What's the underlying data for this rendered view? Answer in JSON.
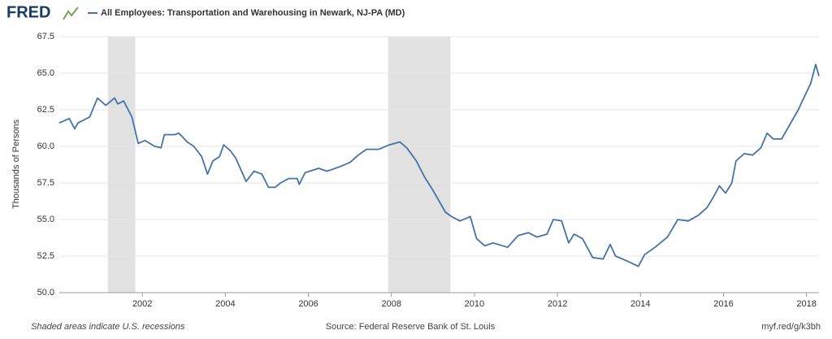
{
  "brand": "FRED",
  "chart_data": {
    "type": "line",
    "title": "All Employees: Transportation and Warehousing in Newark, NJ-PA (MD)",
    "y_label": "Thousands of Persons",
    "recession_note": "Shaded areas indicate U.S. recessions",
    "source": "Source: Federal Reserve Bank of St. Louis",
    "link": "myf.red/g/k3bh",
    "recessions": [
      [
        2001.17,
        2001.83
      ],
      [
        2007.92,
        2009.42
      ]
    ],
    "recession_color": "#e1e1e1",
    "xlim": [
      2000,
      2018.3
    ],
    "xticks": [
      2002,
      2004,
      2006,
      2008,
      2010,
      2012,
      2014,
      2016,
      2018
    ],
    "ylim": [
      50,
      67.5
    ],
    "yticks": [
      {
        "value": 50,
        "label": "50.0"
      },
      {
        "value": 52.5,
        "label": "52.5"
      },
      {
        "value": 55,
        "label": "55.0"
      },
      {
        "value": 57.5,
        "label": "57.5"
      },
      {
        "value": 60,
        "label": "60.0"
      },
      {
        "value": 62.5,
        "label": "62.5"
      },
      {
        "value": 65,
        "label": "65.0"
      },
      {
        "value": 67.5,
        "label": "67.5"
      }
    ],
    "grid": true,
    "x": [
      2000.0,
      2000.24,
      2000.37,
      2000.45,
      2000.73,
      2000.92,
      2001.12,
      2001.33,
      2001.41,
      2001.55,
      2001.75,
      2001.9,
      2002.06,
      2002.3,
      2002.45,
      2002.53,
      2002.78,
      2002.88,
      2003.08,
      2003.24,
      2003.43,
      2003.57,
      2003.7,
      2003.86,
      2003.96,
      2004.12,
      2004.25,
      2004.5,
      2004.69,
      2004.88,
      2005.04,
      2005.2,
      2005.33,
      2005.53,
      2005.73,
      2005.78,
      2005.92,
      2006.25,
      2006.45,
      2006.75,
      2007.0,
      2007.2,
      2007.4,
      2007.7,
      2007.95,
      2008.2,
      2008.37,
      2008.6,
      2008.8,
      2009.0,
      2009.3,
      2009.45,
      2009.65,
      2009.9,
      2010.05,
      2010.25,
      2010.45,
      2010.8,
      2011.05,
      2011.3,
      2011.5,
      2011.75,
      2011.9,
      2012.1,
      2012.27,
      2012.4,
      2012.6,
      2012.85,
      2013.1,
      2013.27,
      2013.4,
      2013.65,
      2013.95,
      2014.1,
      2014.35,
      2014.65,
      2014.9,
      2015.15,
      2015.4,
      2015.6,
      2015.75,
      2015.9,
      2016.05,
      2016.2,
      2016.3,
      2016.5,
      2016.7,
      2016.9,
      2017.05,
      2017.2,
      2017.4,
      2017.6,
      2017.8,
      2017.95,
      2018.1,
      2018.22,
      2018.3
    ],
    "series": [
      {
        "name": "All Employees: Transportation and Warehousing in Newark, NJ-PA (MD)",
        "color": "#4572a7",
        "values": [
          61.6,
          61.9,
          61.2,
          61.6,
          62.0,
          63.3,
          62.8,
          63.3,
          62.9,
          63.1,
          62.0,
          60.2,
          60.4,
          60.0,
          59.9,
          60.8,
          60.8,
          60.9,
          60.3,
          60.0,
          59.3,
          58.1,
          59.0,
          59.3,
          60.1,
          59.7,
          59.2,
          57.6,
          58.3,
          58.1,
          57.2,
          57.2,
          57.5,
          57.8,
          57.8,
          57.4,
          58.2,
          58.5,
          58.3,
          58.6,
          58.9,
          59.4,
          59.8,
          59.8,
          60.1,
          60.3,
          59.9,
          59.0,
          57.9,
          57.0,
          55.5,
          55.2,
          54.9,
          55.2,
          53.7,
          53.2,
          53.4,
          53.1,
          53.9,
          54.1,
          53.8,
          54.0,
          55.0,
          54.9,
          53.4,
          54.0,
          53.7,
          52.4,
          52.3,
          53.3,
          52.5,
          52.2,
          51.8,
          52.6,
          53.1,
          53.8,
          55.0,
          54.9,
          55.3,
          55.8,
          56.5,
          57.3,
          56.8,
          57.5,
          59.0,
          59.5,
          59.4,
          59.9,
          60.9,
          60.5,
          60.5,
          61.5,
          62.5,
          63.4,
          64.3,
          65.6,
          64.8
        ]
      }
    ]
  }
}
